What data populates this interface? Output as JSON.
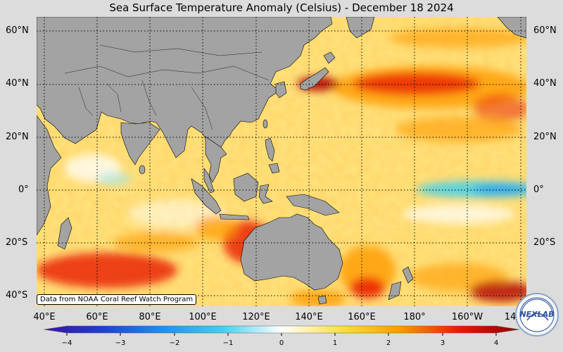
{
  "title": "Sea Surface Temperature Anomaly (Celsius) - December 18 2024",
  "credit": "Data from NOAA Coral Reef Watch Program",
  "logo_text": "NEXLAB",
  "lat_labels": [
    "60°N",
    "40°N",
    "20°N",
    "0°",
    "20°S",
    "40°S"
  ],
  "lon_labels": [
    "40°E",
    "60°E",
    "80°E",
    "100°E",
    "120°E",
    "140°E",
    "160°E",
    "180°",
    "160°W",
    "14"
  ],
  "colorbar": {
    "min": -4,
    "max": 4,
    "ticks": [
      "−4",
      "−3",
      "−2",
      "−1",
      "0",
      "1",
      "2",
      "3",
      "4"
    ],
    "colors": [
      "#3b0f9e",
      "#1e3fd8",
      "#1e8ff0",
      "#40d0f0",
      "#ffffff",
      "#ffe040",
      "#ff9a00",
      "#e81800",
      "#8b0000"
    ]
  },
  "colors": {
    "land": "#a3a3a3",
    "background": "#dcdcdc"
  }
}
